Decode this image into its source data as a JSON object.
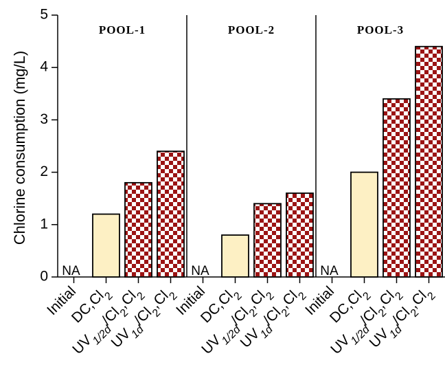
{
  "chart_data": {
    "type": "bar",
    "ylabel": "Chlorine consumption (mg/L)",
    "ylim": [
      0,
      5
    ],
    "yticks": [
      "0",
      "1",
      "2",
      "3",
      "4",
      "5"
    ],
    "categories": [
      {
        "base": "Initial",
        "sub": "",
        "rest": ""
      },
      {
        "base": "DC,Cl",
        "sub": "2",
        "rest": ""
      },
      {
        "base": "UV",
        "sub": "1/2d",
        "rest": "/Cl",
        "sub2": "2",
        "rest2": ",Cl",
        "sub3": "2"
      },
      {
        "base": "UV",
        "sub": "1d",
        "rest": "/Cl",
        "sub2": "2",
        "rest2": ",Cl",
        "sub3": "2"
      }
    ],
    "na_label": "NA",
    "colors": {
      "dc_fill": "#fdf0c4",
      "checker_red": "#9b1414",
      "checker_white": "#ffffff"
    },
    "groups": [
      {
        "name": "POOL-1",
        "values": [
          null,
          1.2,
          1.8,
          2.4
        ]
      },
      {
        "name": "POOL-2",
        "values": [
          null,
          0.8,
          1.4,
          1.6
        ]
      },
      {
        "name": "POOL-3",
        "values": [
          null,
          2.0,
          3.4,
          4.4
        ]
      }
    ]
  }
}
